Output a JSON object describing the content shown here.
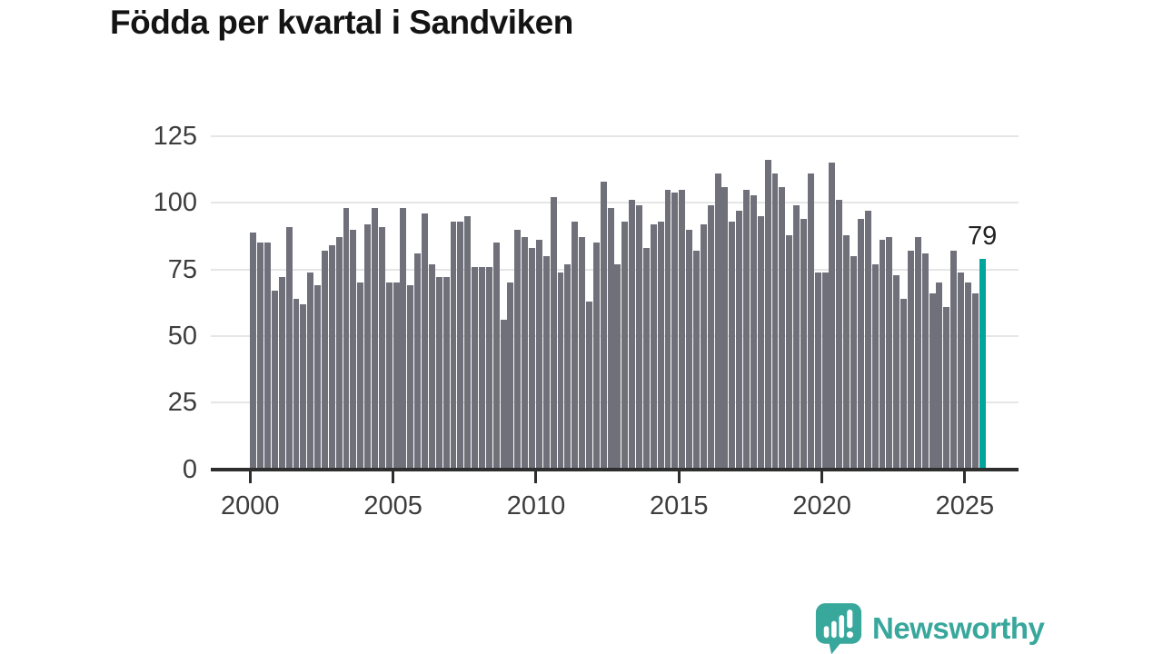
{
  "title": "Födda per kvartal i Sandviken",
  "annotation": {
    "label": "79"
  },
  "logo": {
    "text": "Newsworthy",
    "icon": "newsworthy-speech-bubble-chart-icon"
  },
  "colors": {
    "bar": "#70707a",
    "accent": "#00a69b",
    "logo_teal": "#38a79c",
    "axis": "#2e2e2e",
    "grid": "#e6e6e6",
    "tick_text": "#3d3d3d",
    "title_text": "#141414",
    "annotation_text": "#222222",
    "background": "#ffffff"
  },
  "chart_data": {
    "type": "bar",
    "title": "Födda per kvartal i Sandviken",
    "x_unit": "quarter",
    "start": "2000-Q1",
    "end": "2025-Q3",
    "ylim": [
      0,
      125
    ],
    "y_ticks": [
      0,
      25,
      50,
      75,
      100,
      125
    ],
    "x_tick_years": [
      2000,
      2005,
      2010,
      2015,
      2020,
      2025
    ],
    "grid": "horizontal",
    "legend": "none",
    "highlight": {
      "position": "last",
      "value": 79,
      "label": "79"
    },
    "values": [
      89,
      85,
      85,
      67,
      72,
      91,
      64,
      62,
      74,
      69,
      82,
      84,
      87,
      98,
      90,
      70,
      92,
      98,
      91,
      70,
      70,
      98,
      69,
      81,
      96,
      77,
      72,
      72,
      93,
      93,
      95,
      76,
      76,
      76,
      85,
      56,
      70,
      90,
      87,
      83,
      86,
      80,
      102,
      74,
      77,
      93,
      87,
      63,
      85,
      108,
      98,
      77,
      93,
      101,
      99,
      83,
      92,
      93,
      105,
      104,
      105,
      90,
      82,
      92,
      99,
      111,
      106,
      93,
      97,
      105,
      103,
      95,
      116,
      111,
      106,
      88,
      99,
      94,
      111,
      74,
      74,
      115,
      101,
      88,
      80,
      94,
      97,
      77,
      86,
      87,
      73,
      64,
      82,
      87,
      81,
      66,
      70,
      61,
      82,
      74,
      70,
      66,
      79
    ]
  }
}
